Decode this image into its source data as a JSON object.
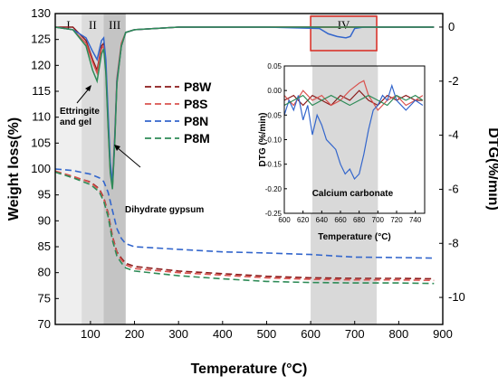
{
  "chart_data": [
    {
      "type": "line",
      "xlabel": "Temperature (°C)",
      "ylabel": "Weight loss(%)",
      "y2label": "DTG(%/min)",
      "xlim": [
        20,
        900
      ],
      "ylim": [
        70,
        130
      ],
      "y2lim": [
        -11,
        0.5
      ],
      "x_ticks": [
        100,
        200,
        300,
        400,
        500,
        600,
        700,
        800,
        900
      ],
      "y_ticks": [
        70,
        75,
        80,
        85,
        90,
        95,
        100,
        105,
        110,
        115,
        120,
        125,
        130
      ],
      "y2_ticks": [
        0,
        -2,
        -4,
        -6,
        -8,
        -10
      ],
      "legend_position": "center-left",
      "grid": false,
      "series": [
        {
          "name": "P8W",
          "color": "#8b1a1a"
        },
        {
          "name": "P8S",
          "color": "#d9534f"
        },
        {
          "name": "P8N",
          "color": "#3366cc"
        },
        {
          "name": "P8M",
          "color": "#2e8b57"
        }
      ],
      "tg_curves": [
        {
          "x": [
            20,
            60,
            100,
            120,
            130,
            140,
            150,
            160,
            170,
            180,
            200,
            300,
            400,
            500,
            600,
            700,
            800,
            880
          ],
          "y": [
            99.5,
            98.5,
            97.5,
            96.2,
            94.5,
            91.5,
            87.0,
            84.0,
            82.8,
            81.8,
            81.2,
            80.3,
            79.8,
            79.3,
            79.0,
            78.9,
            78.9,
            78.8
          ]
        },
        {
          "x": [
            20,
            60,
            100,
            120,
            130,
            140,
            150,
            160,
            170,
            180,
            200,
            300,
            400,
            500,
            600,
            700,
            800,
            880
          ],
          "y": [
            99.6,
            98.6,
            97.4,
            96.0,
            94.3,
            91.3,
            86.8,
            83.8,
            82.5,
            81.5,
            80.8,
            80.0,
            79.5,
            79.0,
            78.7,
            78.6,
            78.6,
            78.5
          ]
        },
        {
          "x": [
            20,
            60,
            100,
            120,
            130,
            140,
            150,
            160,
            170,
            180,
            200,
            300,
            400,
            500,
            600,
            700,
            800,
            880
          ],
          "y": [
            100.0,
            99.7,
            99.0,
            98.3,
            97.6,
            95.5,
            92.0,
            88.5,
            86.6,
            85.6,
            85.0,
            84.5,
            84.0,
            83.8,
            83.5,
            83.0,
            82.9,
            82.8
          ]
        },
        {
          "x": [
            20,
            60,
            100,
            120,
            130,
            140,
            150,
            160,
            170,
            180,
            200,
            300,
            400,
            500,
            600,
            700,
            800,
            880
          ],
          "y": [
            99.4,
            98.3,
            97.0,
            95.6,
            93.8,
            90.8,
            86.2,
            83.2,
            81.9,
            80.9,
            80.3,
            79.4,
            78.8,
            78.3,
            78.1,
            78.0,
            78.0,
            77.9
          ]
        }
      ],
      "dtg_curves": [
        {
          "x": [
            20,
            60,
            90,
            105,
            115,
            125,
            130,
            135,
            140,
            145,
            150,
            155,
            160,
            170,
            180,
            200,
            300,
            500,
            880
          ],
          "y": [
            0.0,
            0.0,
            -0.5,
            -1.2,
            -1.6,
            -0.7,
            -0.6,
            -1.5,
            -3.5,
            -5.3,
            -5.9,
            -4.2,
            -2.0,
            -0.7,
            -0.2,
            -0.1,
            0.0,
            0.0,
            0.0
          ]
        },
        {
          "x": [
            20,
            60,
            90,
            105,
            115,
            125,
            130,
            135,
            140,
            145,
            150,
            155,
            160,
            170,
            180,
            200,
            300,
            500,
            880
          ],
          "y": [
            0.0,
            -0.1,
            -0.6,
            -1.3,
            -1.7,
            -0.8,
            -0.7,
            -1.6,
            -3.6,
            -5.2,
            -5.7,
            -4.0,
            -1.9,
            -0.6,
            -0.2,
            -0.1,
            0.0,
            0.0,
            0.0
          ]
        },
        {
          "x": [
            20,
            60,
            90,
            105,
            115,
            125,
            130,
            135,
            140,
            145,
            150,
            155,
            160,
            170,
            180,
            200,
            300,
            500,
            620,
            640,
            660,
            680,
            690,
            700,
            720,
            880
          ],
          "y": [
            0.0,
            -0.1,
            -0.4,
            -0.9,
            -1.2,
            -0.5,
            -0.4,
            -1.2,
            -3.2,
            -5.0,
            -5.8,
            -4.1,
            -2.0,
            -0.7,
            -0.2,
            -0.1,
            0.0,
            0.0,
            -0.05,
            -0.25,
            -0.35,
            -0.4,
            -0.35,
            -0.05,
            0.0,
            0.0
          ]
        },
        {
          "x": [
            20,
            60,
            90,
            105,
            115,
            125,
            130,
            135,
            140,
            145,
            150,
            155,
            160,
            170,
            180,
            200,
            300,
            500,
            880
          ],
          "y": [
            0.0,
            -0.1,
            -0.7,
            -1.6,
            -2.0,
            -1.0,
            -0.8,
            -1.7,
            -3.7,
            -5.4,
            -6.0,
            -4.3,
            -2.1,
            -0.7,
            -0.2,
            -0.1,
            0.0,
            0.0,
            0.0
          ]
        }
      ],
      "regions": [
        {
          "label": "I",
          "x": [
            20,
            80
          ]
        },
        {
          "label": "II",
          "x": [
            80,
            130
          ]
        },
        {
          "label": "III",
          "x": [
            130,
            180
          ]
        },
        {
          "label": "IV",
          "x": [
            600,
            750
          ]
        }
      ],
      "annotations": {
        "ettringite_line1": "Ettringite",
        "ettringite_line2": "and gel",
        "dihydrate": "Dihydrate gypsum",
        "calcium": "Calcium carbonate"
      }
    },
    {
      "type": "line",
      "xlabel": "Temperature (°C)",
      "ylabel": "DTG (%/min)",
      "xlim": [
        600,
        750
      ],
      "ylim": [
        -0.25,
        0.05
      ],
      "x_ticks": [
        600,
        620,
        640,
        660,
        680,
        700,
        720,
        740
      ],
      "y_ticks": [
        0.05,
        0.0,
        -0.05,
        -0.1,
        -0.15,
        -0.2,
        -0.25
      ],
      "y_tick_labels": [
        "0.05",
        "0.00",
        "-0.05",
        "-0.10",
        "-0.15",
        "-0.20",
        "-0.25"
      ],
      "shaded_region": [
        630,
        700
      ],
      "series": [
        {
          "name": "P8W",
          "color": "#8b1a1a",
          "x": [
            600,
            610,
            620,
            630,
            640,
            650,
            660,
            670,
            680,
            690,
            700,
            710,
            720,
            730,
            740,
            748
          ],
          "y": [
            -0.02,
            -0.01,
            -0.03,
            -0.01,
            -0.02,
            -0.03,
            -0.01,
            -0.02,
            0.0,
            -0.02,
            -0.03,
            -0.01,
            -0.02,
            -0.01,
            -0.02,
            -0.02
          ]
        },
        {
          "name": "P8S",
          "color": "#d9534f",
          "x": [
            600,
            610,
            620,
            630,
            640,
            650,
            660,
            670,
            680,
            685,
            690,
            700,
            710,
            720,
            730,
            740,
            748
          ],
          "y": [
            -0.01,
            -0.03,
            0.0,
            -0.02,
            -0.01,
            -0.03,
            -0.02,
            0.0,
            0.015,
            0.02,
            -0.01,
            -0.04,
            -0.02,
            -0.01,
            -0.03,
            -0.02,
            -0.01
          ]
        },
        {
          "name": "P8N",
          "color": "#3366cc",
          "x": [
            600,
            605,
            610,
            615,
            620,
            625,
            630,
            635,
            640,
            645,
            650,
            655,
            660,
            665,
            670,
            675,
            680,
            685,
            690,
            695,
            700,
            705,
            710,
            715,
            720,
            730,
            740,
            748
          ],
          "y": [
            -0.05,
            -0.02,
            -0.04,
            -0.01,
            -0.06,
            -0.03,
            -0.09,
            -0.05,
            -0.07,
            -0.1,
            -0.11,
            -0.12,
            -0.15,
            -0.17,
            -0.16,
            -0.18,
            -0.17,
            -0.13,
            -0.08,
            -0.04,
            -0.03,
            -0.01,
            -0.02,
            0.01,
            -0.02,
            -0.04,
            -0.02,
            -0.03
          ]
        },
        {
          "name": "P8M",
          "color": "#2e8b57",
          "x": [
            600,
            610,
            620,
            630,
            640,
            650,
            660,
            670,
            680,
            690,
            700,
            710,
            720,
            730,
            740,
            748
          ],
          "y": [
            -0.03,
            -0.02,
            -0.01,
            -0.03,
            -0.02,
            -0.01,
            -0.02,
            -0.03,
            -0.02,
            -0.01,
            -0.02,
            -0.03,
            -0.01,
            -0.02,
            -0.01,
            -0.02
          ]
        }
      ]
    }
  ]
}
